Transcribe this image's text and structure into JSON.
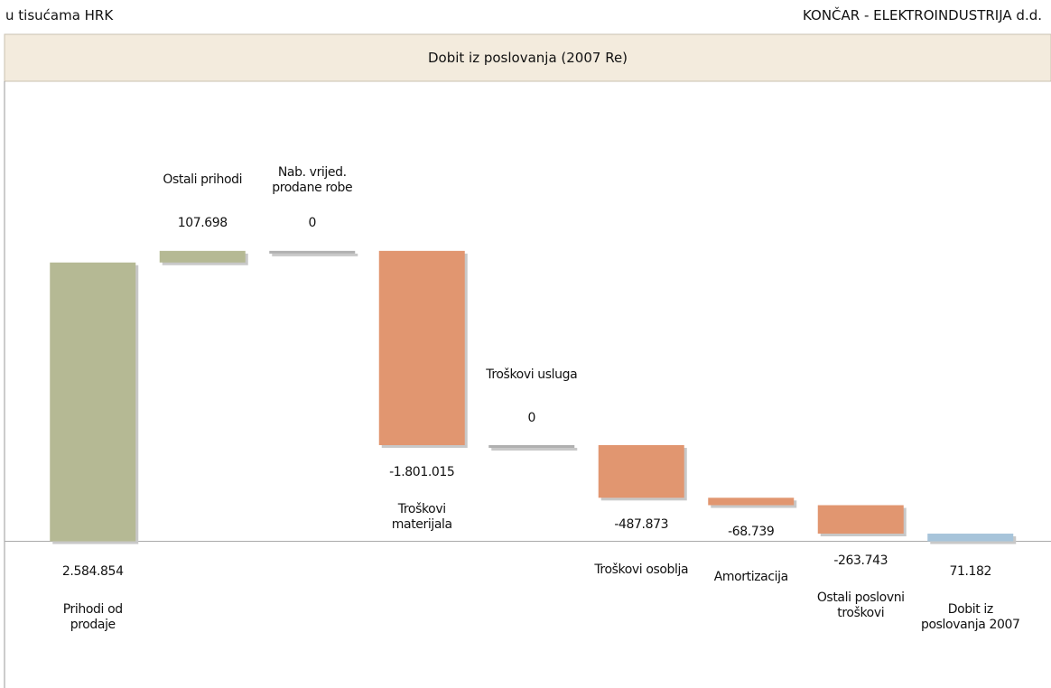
{
  "chart_data": {
    "type": "waterfall",
    "unit_note": "u tisućama HRK",
    "company": "KONČAR - ELEKTROINDUSTRIJA d.d.",
    "title": "Dobit iz poslovanja (2007 Re)",
    "categories": [
      "Prihodi od prodaje",
      "Ostali prihodi",
      "Nab. vrijed. prodane robe",
      "Troškovi materijala",
      "Troškovi usluga",
      "Troškovi osoblja",
      "Amortizacija",
      "Ostali poslovni troškovi",
      "Dobit iz poslovanja 2007"
    ],
    "values": [
      2584854,
      107698,
      0,
      -1801015,
      0,
      -487873,
      -68739,
      -263743,
      71182
    ],
    "value_labels": [
      "2.584.854",
      "107.698",
      "0",
      "-1.801.015",
      "0",
      "-487.873",
      "-68.739",
      "-263.743",
      "71.182"
    ],
    "colors": {
      "increase": "#b5b994",
      "decrease": "#e19670",
      "zero": "#b0b0b0",
      "total": "#a7c4da"
    },
    "ylim": [
      -1360000,
      4265000
    ]
  }
}
